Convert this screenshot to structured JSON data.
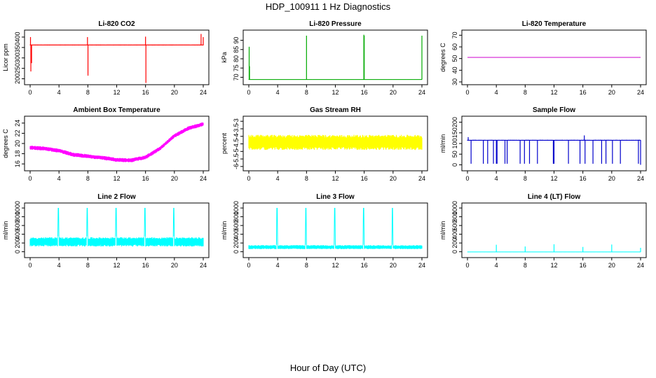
{
  "figure": {
    "title": "HDP_100911  1 Hz Diagnostics",
    "xlabel": "Hour of Day (UTC)"
  },
  "chart_data": [
    {
      "type": "line",
      "title": "Li-820 CO2",
      "ylabel": "Licor ppm",
      "color": "#ff0000",
      "xlim": [
        0,
        24
      ],
      "ylim": [
        185,
        420
      ],
      "xticks": [
        0,
        4,
        8,
        12,
        16,
        20,
        24
      ],
      "yticks": [
        200,
        250,
        300,
        350,
        400
      ],
      "baseline": 362,
      "noise": 4,
      "spikes": [
        {
          "x": 0.05,
          "y": 400
        },
        {
          "x": 0.1,
          "y": 235
        },
        {
          "x": 0.2,
          "y": 275
        },
        {
          "x": 7.95,
          "y": 400
        },
        {
          "x": 8.02,
          "y": 215
        },
        {
          "x": 16.0,
          "y": 402
        },
        {
          "x": 16.05,
          "y": 180
        },
        {
          "x": 23.7,
          "y": 415
        },
        {
          "x": 24.0,
          "y": 400
        }
      ]
    },
    {
      "type": "line",
      "title": "Li-820 Pressure",
      "ylabel": "kPa",
      "color": "#00aa00",
      "xlim": [
        0,
        24
      ],
      "ylim": [
        67.5,
        94
      ],
      "xticks": [
        0,
        4,
        8,
        12,
        16,
        20,
        24
      ],
      "yticks": [
        70,
        75,
        80,
        85,
        90
      ],
      "baseline": 68.8,
      "noise": 0.25,
      "spikes": [
        {
          "x": 0.05,
          "y": 86.5
        },
        {
          "x": 0.1,
          "y": 76
        },
        {
          "x": 8.0,
          "y": 92.5
        },
        {
          "x": 15.95,
          "y": 93
        },
        {
          "x": 16.0,
          "y": 92.5
        },
        {
          "x": 24.0,
          "y": 92.5
        }
      ]
    },
    {
      "type": "line",
      "title": "Li-820 Temperature",
      "ylabel": "degrees C",
      "color": "#cc00cc",
      "xlim": [
        0,
        24
      ],
      "ylim": [
        30,
        72
      ],
      "xticks": [
        0,
        4,
        8,
        12,
        16,
        20,
        24
      ],
      "yticks": [
        30,
        40,
        50,
        60,
        70
      ],
      "baseline": 51,
      "noise": 0,
      "spikes": []
    },
    {
      "type": "line",
      "title": "Ambient Box Temperature",
      "ylabel": "degrees C",
      "color": "#ff00ff",
      "xlim": [
        0,
        24
      ],
      "ylim": [
        15.2,
        24.8
      ],
      "xticks": [
        0,
        4,
        8,
        12,
        16,
        20,
        24
      ],
      "yticks": [
        16,
        18,
        20,
        22,
        24
      ],
      "noise": 0.8,
      "trend": [
        {
          "x": 0,
          "y": 19.2
        },
        {
          "x": 2,
          "y": 19.0
        },
        {
          "x": 4,
          "y": 18.6
        },
        {
          "x": 6,
          "y": 17.8
        },
        {
          "x": 8,
          "y": 17.5
        },
        {
          "x": 10,
          "y": 17.2
        },
        {
          "x": 12,
          "y": 16.8
        },
        {
          "x": 14,
          "y": 16.7
        },
        {
          "x": 16,
          "y": 17.3
        },
        {
          "x": 18,
          "y": 19.0
        },
        {
          "x": 20,
          "y": 21.5
        },
        {
          "x": 22,
          "y": 23.0
        },
        {
          "x": 24,
          "y": 23.8
        }
      ],
      "spikes": []
    },
    {
      "type": "line",
      "title": "Gas Stream RH",
      "ylabel": "percent",
      "color": "#ffff00",
      "xlim": [
        0,
        24
      ],
      "ylim": [
        -6.1,
        -2.85
      ],
      "xticks": [
        0,
        4,
        8,
        12,
        16,
        20,
        24
      ],
      "yticks": [
        -6.0,
        -5.5,
        -5.0,
        -4.5,
        -4.0,
        -3.5,
        -3.0
      ],
      "baseline": -4.4,
      "noise": 1.0,
      "spikes": []
    },
    {
      "type": "line",
      "title": "Sample Flow",
      "ylabel": "ml/min",
      "color": "#0000cc",
      "xlim": [
        0,
        24
      ],
      "ylim": [
        -15,
        215
      ],
      "xticks": [
        0,
        4,
        8,
        12,
        16,
        20,
        24
      ],
      "yticks": [
        0,
        50,
        100,
        150,
        200
      ],
      "baseline": 115,
      "noise": 4,
      "spikes": [
        {
          "x": 0.1,
          "y": 130
        },
        {
          "x": 0.5,
          "y": 5
        },
        {
          "x": 2.2,
          "y": 5
        },
        {
          "x": 2.8,
          "y": 5
        },
        {
          "x": 3.6,
          "y": 5
        },
        {
          "x": 4.0,
          "y": 5
        },
        {
          "x": 4.1,
          "y": 5
        },
        {
          "x": 5.2,
          "y": 5
        },
        {
          "x": 5.5,
          "y": 5
        },
        {
          "x": 7.3,
          "y": 5
        },
        {
          "x": 7.9,
          "y": 5
        },
        {
          "x": 8.6,
          "y": 5
        },
        {
          "x": 9.7,
          "y": 5
        },
        {
          "x": 11.9,
          "y": 5
        },
        {
          "x": 12.0,
          "y": 5
        },
        {
          "x": 14.0,
          "y": 5
        },
        {
          "x": 15.6,
          "y": 5
        },
        {
          "x": 16.2,
          "y": 138
        },
        {
          "x": 16.3,
          "y": 5
        },
        {
          "x": 17.4,
          "y": 5
        },
        {
          "x": 18.6,
          "y": 5
        },
        {
          "x": 19.2,
          "y": 5
        },
        {
          "x": 20.1,
          "y": 5
        },
        {
          "x": 21.2,
          "y": 5
        },
        {
          "x": 23.7,
          "y": 5
        },
        {
          "x": 24.0,
          "y": 0
        }
      ]
    },
    {
      "type": "line",
      "title": "Line 2 Flow",
      "ylabel": "ml/min",
      "color": "#00ffff",
      "xlim": [
        0,
        24
      ],
      "ylim": [
        -70,
        1050
      ],
      "xticks": [
        0,
        4,
        8,
        12,
        16,
        20,
        24
      ],
      "yticks": [
        0,
        200,
        400,
        600,
        800,
        1000
      ],
      "baseline": 225,
      "noise": 210,
      "gaps": [
        3.9,
        7.9,
        11.9,
        15.9,
        19.9
      ],
      "spikes": []
    },
    {
      "type": "line",
      "title": "Line 3 Flow",
      "ylabel": "ml/min",
      "color": "#00ffff",
      "xlim": [
        0,
        24
      ],
      "ylim": [
        -70,
        1050
      ],
      "xticks": [
        0,
        4,
        8,
        12,
        16,
        20,
        24
      ],
      "yticks": [
        0,
        200,
        400,
        600,
        800,
        1000
      ],
      "baseline": 105,
      "noise": 90,
      "gaps": [
        3.9,
        7.9,
        11.9,
        15.9,
        19.9
      ],
      "spikes": [
        {
          "x": 0.05,
          "y": 150
        }
      ]
    },
    {
      "type": "line",
      "title": "Line 4 (LT) Flow",
      "ylabel": "ml/min",
      "color": "#00ffff",
      "xlim": [
        0,
        24
      ],
      "ylim": [
        -70,
        1050
      ],
      "xticks": [
        0,
        4,
        8,
        12,
        16,
        20,
        24
      ],
      "yticks": [
        0,
        200,
        400,
        600,
        800,
        1000
      ],
      "baseline": -5,
      "noise": 8,
      "spikes": [
        {
          "x": 4.0,
          "y": 160
        },
        {
          "x": 8.0,
          "y": 120
        },
        {
          "x": 12.0,
          "y": 170
        },
        {
          "x": 16.0,
          "y": 110
        },
        {
          "x": 20.0,
          "y": 165
        },
        {
          "x": 24.0,
          "y": 90
        }
      ]
    }
  ]
}
